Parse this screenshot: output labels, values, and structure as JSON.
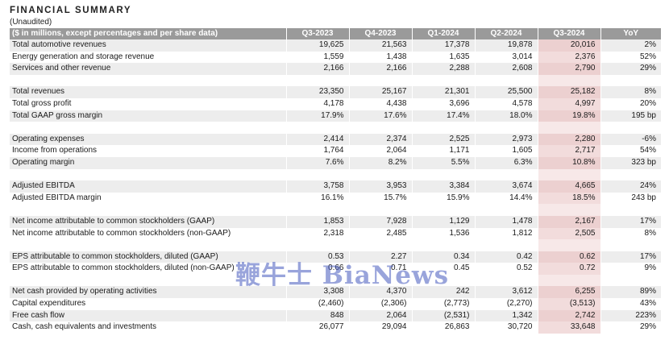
{
  "header": {
    "title": "FINANCIAL SUMMARY",
    "subtitle": "(Unaudited)"
  },
  "table": {
    "label_header": "($ in millions, except percentages and per share data)",
    "columns": [
      "Q3-2023",
      "Q4-2023",
      "Q1-2024",
      "Q2-2024",
      "Q3-2024",
      "YoY"
    ],
    "highlight_column": "Q3-2024",
    "highlight_color": "#f2dcdc",
    "header_color": "#9a9a9a",
    "rows": [
      {
        "label": "Total automotive revenues",
        "values": [
          "19,625",
          "21,563",
          "17,378",
          "19,878",
          "20,016",
          "2%"
        ]
      },
      {
        "label": "Energy generation and storage revenue",
        "values": [
          "1,559",
          "1,438",
          "1,635",
          "3,014",
          "2,376",
          "52%"
        ]
      },
      {
        "label": "Services and other revenue",
        "values": [
          "2,166",
          "2,166",
          "2,288",
          "2,608",
          "2,790",
          "29%"
        ]
      },
      {
        "label": "Total revenues",
        "values": [
          "23,350",
          "25,167",
          "21,301",
          "25,500",
          "25,182",
          "8%"
        ]
      },
      {
        "label": "Total gross profit",
        "values": [
          "4,178",
          "4,438",
          "3,696",
          "4,578",
          "4,997",
          "20%"
        ]
      },
      {
        "label": "Total GAAP gross margin",
        "values": [
          "17.9%",
          "17.6%",
          "17.4%",
          "18.0%",
          "19.8%",
          "195 bp"
        ]
      },
      {
        "label": "Operating expenses",
        "values": [
          "2,414",
          "2,374",
          "2,525",
          "2,973",
          "2,280",
          "-6%"
        ]
      },
      {
        "label": "Income from operations",
        "values": [
          "1,764",
          "2,064",
          "1,171",
          "1,605",
          "2,717",
          "54%"
        ]
      },
      {
        "label": "Operating margin",
        "values": [
          "7.6%",
          "8.2%",
          "5.5%",
          "6.3%",
          "10.8%",
          "323 bp"
        ]
      },
      {
        "label": "Adjusted EBITDA",
        "values": [
          "3,758",
          "3,953",
          "3,384",
          "3,674",
          "4,665",
          "24%"
        ]
      },
      {
        "label": "Adjusted EBITDA margin",
        "values": [
          "16.1%",
          "15.7%",
          "15.9%",
          "14.4%",
          "18.5%",
          "243 bp"
        ]
      },
      {
        "label": "Net income attributable to common stockholders (GAAP)",
        "values": [
          "1,853",
          "7,928",
          "1,129",
          "1,478",
          "2,167",
          "17%"
        ]
      },
      {
        "label": "Net income attributable to common stockholders (non-GAAP)",
        "values": [
          "2,318",
          "2,485",
          "1,536",
          "1,812",
          "2,505",
          "8%"
        ]
      },
      {
        "label": "EPS attributable to common stockholders, diluted (GAAP)",
        "values": [
          "0.53",
          "2.27",
          "0.34",
          "0.42",
          "0.62",
          "17%"
        ]
      },
      {
        "label": "EPS attributable to common stockholders, diluted (non-GAAP)",
        "values": [
          "0.66",
          "0.71",
          "0.45",
          "0.52",
          "0.72",
          "9%"
        ]
      },
      {
        "label": "Net cash provided by operating activities",
        "values": [
          "3,308",
          "4,370",
          "242",
          "3,612",
          "6,255",
          "89%"
        ]
      },
      {
        "label": "Capital expenditures",
        "values": [
          "(2,460)",
          "(2,306)",
          "(2,773)",
          "(2,270)",
          "(3,513)",
          "43%"
        ]
      },
      {
        "label": "Free cash flow",
        "values": [
          "848",
          "2,064",
          "(2,531)",
          "1,342",
          "2,742",
          "223%"
        ]
      },
      {
        "label": "Cash, cash equivalents and investments",
        "values": [
          "26,077",
          "29,094",
          "26,863",
          "30,720",
          "33,648",
          "29%"
        ]
      }
    ]
  },
  "watermark": "鞭牛士 BiaNews"
}
